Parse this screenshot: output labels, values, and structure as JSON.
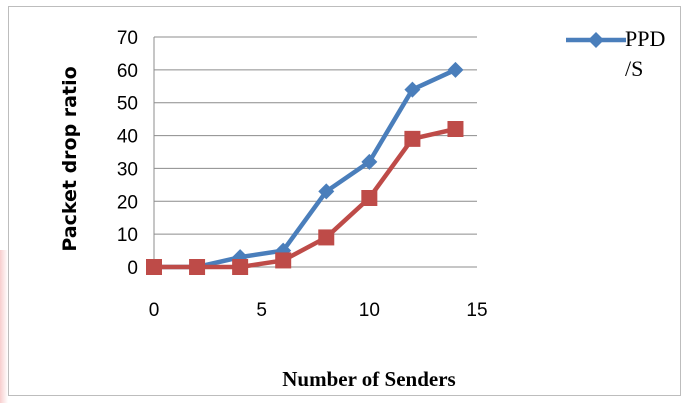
{
  "chart_data": {
    "type": "line",
    "xlabel": "Number of Senders",
    "ylabel": "Packet drop ratio",
    "xlim": [
      0,
      15
    ],
    "ylim": [
      0,
      70
    ],
    "xticks": [
      0,
      5,
      10,
      15
    ],
    "yticks": [
      0,
      10,
      20,
      30,
      40,
      50,
      60,
      70
    ],
    "grid": "horizontal",
    "legend_position": "top-right",
    "series": [
      {
        "name": "PPD\n/S",
        "legend_lines": [
          "PPD",
          "/S"
        ],
        "color": "#4a7ebb",
        "marker": "diamond",
        "x": [
          0,
          2,
          4,
          6,
          8,
          10,
          12,
          14
        ],
        "y": [
          0,
          0,
          3,
          5,
          23,
          32,
          54,
          60
        ]
      },
      {
        "color": "#be4b48",
        "marker": "square",
        "x": [
          0,
          2,
          4,
          6,
          8,
          10,
          12,
          14
        ],
        "y": [
          0,
          0,
          0,
          2,
          9,
          21,
          39,
          42
        ]
      }
    ]
  }
}
